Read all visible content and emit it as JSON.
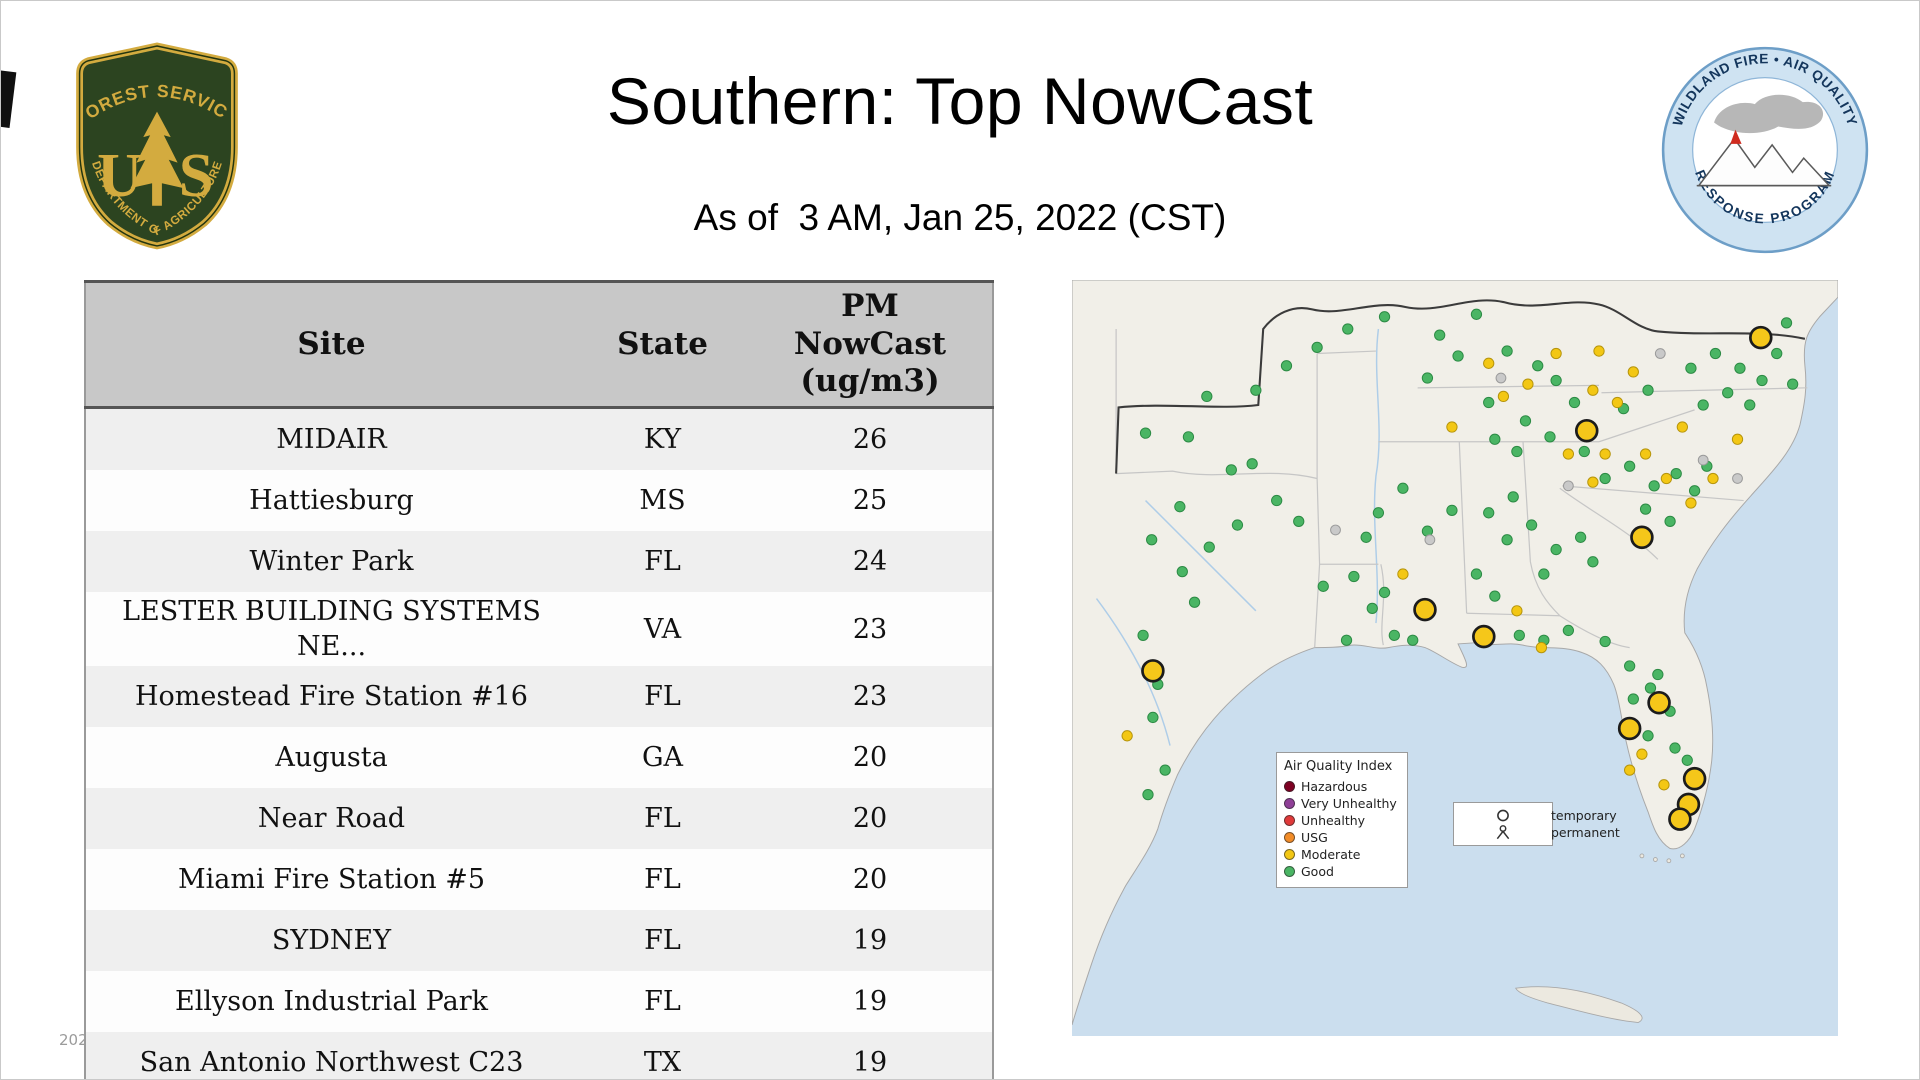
{
  "page": {
    "title": "Southern: Top NowCast",
    "subtitle": "As of  3 AM, Jan 25, 2022 (CST)",
    "footer_partial": "202"
  },
  "logos": {
    "forest_service": {
      "arc_top": "FOREST SERVICE",
      "letter_left": "U",
      "letter_right": "S",
      "arc_bottom": "DEPARTMENT OF AGRICULTURE",
      "gold": "#d3ab3f",
      "green": "#2c4420"
    },
    "wfaqrp": {
      "arc_top": "WILDLAND FIRE • AIR QUALITY",
      "arc_bottom": "RESPONSE PROGRAM",
      "ring": "#cfe3f2",
      "text": "#14365c"
    }
  },
  "table": {
    "headers": [
      "Site",
      "State",
      "PM\nNowCast\n(ug/m3)"
    ],
    "rows": [
      {
        "site": "MIDAIR",
        "state": "KY",
        "value": "26"
      },
      {
        "site": "Hattiesburg",
        "state": "MS",
        "value": "25"
      },
      {
        "site": "Winter Park",
        "state": "FL",
        "value": "24"
      },
      {
        "site": "LESTER BUILDING SYSTEMS\nNE...",
        "state": "VA",
        "value": "23"
      },
      {
        "site": "Homestead Fire Station #16",
        "state": "FL",
        "value": "23"
      },
      {
        "site": "Augusta",
        "state": "GA",
        "value": "20"
      },
      {
        "site": "Near Road",
        "state": "FL",
        "value": "20"
      },
      {
        "site": "Miami Fire Station #5",
        "state": "FL",
        "value": "20"
      },
      {
        "site": "SYDNEY",
        "state": "FL",
        "value": "19"
      },
      {
        "site": "Ellyson Industrial Park",
        "state": "FL",
        "value": "19"
      },
      {
        "site": "San Antonio Northwest C23",
        "state": "TX",
        "value": "19"
      }
    ]
  },
  "map": {
    "colors": {
      "water": "#cbdeee",
      "land": "#f1efe8",
      "island": "#ece9e0",
      "state_line": "#c6c6c6",
      "region_outline": "#3b3b3b",
      "river": "#aecde8"
    },
    "legend_aqi": {
      "title": "Air Quality Index",
      "items": [
        {
          "label": "Hazardous",
          "color": "#7e0023"
        },
        {
          "label": "Very Unhealthy",
          "color": "#8f3f97"
        },
        {
          "label": "Unhealthy",
          "color": "#e03a3a"
        },
        {
          "label": "USG",
          "color": "#f28c28"
        },
        {
          "label": "Moderate",
          "color": "#f3c714"
        },
        {
          "label": "Good",
          "color": "#4ab564"
        }
      ]
    },
    "legend_type": {
      "items": [
        {
          "label": "temporary",
          "symbol": "circle"
        },
        {
          "label": "permanent",
          "symbol": "person"
        }
      ]
    },
    "dot_types": {
      "g": {
        "name": "good",
        "fill": "#4ab564",
        "stroke": "#2c8a44",
        "r": 4.2,
        "sw": 0.8
      },
      "m": {
        "name": "moderate",
        "fill": "#f3c714",
        "stroke": "#b5940c",
        "r": 4.2,
        "sw": 0.8
      },
      "x": {
        "name": "inactive",
        "fill": "#c9c9c9",
        "stroke": "#9a9a9a",
        "r": 4,
        "sw": 0.8
      },
      "G": {
        "name": "top-moderate",
        "fill": "#f5c71a",
        "stroke": "#1c1c1c",
        "r": 8.5,
        "sw": 2.2
      }
    },
    "dots": [
      [
        60,
        125,
        "g"
      ],
      [
        95,
        128,
        "g"
      ],
      [
        130,
        155,
        "g"
      ],
      [
        147,
        150,
        "g"
      ],
      [
        88,
        185,
        "g"
      ],
      [
        65,
        212,
        "g"
      ],
      [
        112,
        218,
        "g"
      ],
      [
        135,
        200,
        "g"
      ],
      [
        90,
        238,
        "g"
      ],
      [
        100,
        263,
        "g"
      ],
      [
        167,
        180,
        "g"
      ],
      [
        185,
        197,
        "g"
      ],
      [
        58,
        290,
        "g"
      ],
      [
        70,
        330,
        "g"
      ],
      [
        66,
        357,
        "g"
      ],
      [
        76,
        400,
        "g"
      ],
      [
        150,
        90,
        "g"
      ],
      [
        175,
        70,
        "g"
      ],
      [
        110,
        95,
        "g"
      ],
      [
        62,
        420,
        "g"
      ],
      [
        205,
        250,
        "g"
      ],
      [
        230,
        242,
        "g"
      ],
      [
        245,
        268,
        "g"
      ],
      [
        263,
        290,
        "g"
      ],
      [
        278,
        294,
        "g"
      ],
      [
        224,
        294,
        "g"
      ],
      [
        255,
        255,
        "g"
      ],
      [
        240,
        210,
        "g"
      ],
      [
        290,
        80,
        "g"
      ],
      [
        315,
        62,
        "g"
      ],
      [
        355,
        58,
        "g"
      ],
      [
        380,
        70,
        "g"
      ],
      [
        395,
        82,
        "g"
      ],
      [
        340,
        100,
        "g"
      ],
      [
        370,
        115,
        "g"
      ],
      [
        410,
        100,
        "g"
      ],
      [
        300,
        45,
        "g"
      ],
      [
        330,
        28,
        "g"
      ],
      [
        255,
        30,
        "g"
      ],
      [
        225,
        40,
        "g"
      ],
      [
        200,
        55,
        "g"
      ],
      [
        250,
        190,
        "g"
      ],
      [
        270,
        170,
        "g"
      ],
      [
        290,
        205,
        "g"
      ],
      [
        310,
        188,
        "g"
      ],
      [
        345,
        130,
        "g"
      ],
      [
        363,
        140,
        "g"
      ],
      [
        390,
        128,
        "g"
      ],
      [
        418,
        140,
        "g"
      ],
      [
        340,
        190,
        "g"
      ],
      [
        355,
        212,
        "g"
      ],
      [
        375,
        200,
        "g"
      ],
      [
        395,
        220,
        "g"
      ],
      [
        415,
        210,
        "g"
      ],
      [
        385,
        240,
        "g"
      ],
      [
        425,
        230,
        "g"
      ],
      [
        360,
        177,
        "g"
      ],
      [
        330,
        240,
        "g"
      ],
      [
        345,
        258,
        "g"
      ],
      [
        435,
        162,
        "g"
      ],
      [
        455,
        152,
        "g"
      ],
      [
        475,
        168,
        "g"
      ],
      [
        493,
        158,
        "g"
      ],
      [
        468,
        187,
        "g"
      ],
      [
        488,
        197,
        "g"
      ],
      [
        508,
        172,
        "g"
      ],
      [
        518,
        152,
        "g"
      ],
      [
        505,
        72,
        "g"
      ],
      [
        525,
        60,
        "g"
      ],
      [
        545,
        72,
        "g"
      ],
      [
        563,
        82,
        "g"
      ],
      [
        535,
        92,
        "g"
      ],
      [
        515,
        102,
        "g"
      ],
      [
        553,
        102,
        "g"
      ],
      [
        575,
        60,
        "g"
      ],
      [
        588,
        85,
        "g"
      ],
      [
        560,
        45,
        "g"
      ],
      [
        583,
        35,
        "g"
      ],
      [
        470,
        90,
        "g"
      ],
      [
        450,
        105,
        "g"
      ],
      [
        435,
        295,
        "g"
      ],
      [
        455,
        315,
        "g"
      ],
      [
        472,
        333,
        "g"
      ],
      [
        488,
        352,
        "g"
      ],
      [
        470,
        372,
        "g"
      ],
      [
        492,
        382,
        "g"
      ],
      [
        502,
        392,
        "g"
      ],
      [
        458,
        342,
        "g"
      ],
      [
        478,
        322,
        "g"
      ],
      [
        365,
        290,
        "g"
      ],
      [
        385,
        294,
        "g"
      ],
      [
        405,
        286,
        "g"
      ],
      [
        395,
        60,
        "m"
      ],
      [
        425,
        90,
        "m"
      ],
      [
        445,
        100,
        "m"
      ],
      [
        405,
        142,
        "m"
      ],
      [
        435,
        142,
        "m"
      ],
      [
        468,
        142,
        "m"
      ],
      [
        485,
        162,
        "m"
      ],
      [
        425,
        165,
        "m"
      ],
      [
        505,
        182,
        "m"
      ],
      [
        523,
        162,
        "m"
      ],
      [
        270,
        240,
        "m"
      ],
      [
        363,
        270,
        "m"
      ],
      [
        383,
        300,
        "m"
      ],
      [
        45,
        372,
        "m"
      ],
      [
        465,
        387,
        "m"
      ],
      [
        483,
        412,
        "m"
      ],
      [
        455,
        400,
        "m"
      ],
      [
        340,
        68,
        "m"
      ],
      [
        310,
        120,
        "m"
      ],
      [
        430,
        58,
        "m"
      ],
      [
        458,
        75,
        "m"
      ],
      [
        498,
        120,
        "m"
      ],
      [
        543,
        130,
        "m"
      ],
      [
        352,
        95,
        "m"
      ],
      [
        372,
        85,
        "m"
      ],
      [
        480,
        60,
        "x"
      ],
      [
        515,
        147,
        "x"
      ],
      [
        543,
        162,
        "x"
      ],
      [
        215,
        204,
        "x"
      ],
      [
        292,
        212,
        "x"
      ],
      [
        405,
        168,
        "x"
      ],
      [
        350,
        80,
        "x"
      ],
      [
        562,
        47,
        "G"
      ],
      [
        420,
        123,
        "G"
      ],
      [
        465,
        210,
        "G"
      ],
      [
        288,
        269,
        "G"
      ],
      [
        336,
        291,
        "G"
      ],
      [
        66,
        319,
        "G"
      ],
      [
        479,
        345,
        "G"
      ],
      [
        455,
        366,
        "G"
      ],
      [
        508,
        407,
        "G"
      ],
      [
        503,
        428,
        "G"
      ],
      [
        496,
        440,
        "G"
      ]
    ]
  }
}
